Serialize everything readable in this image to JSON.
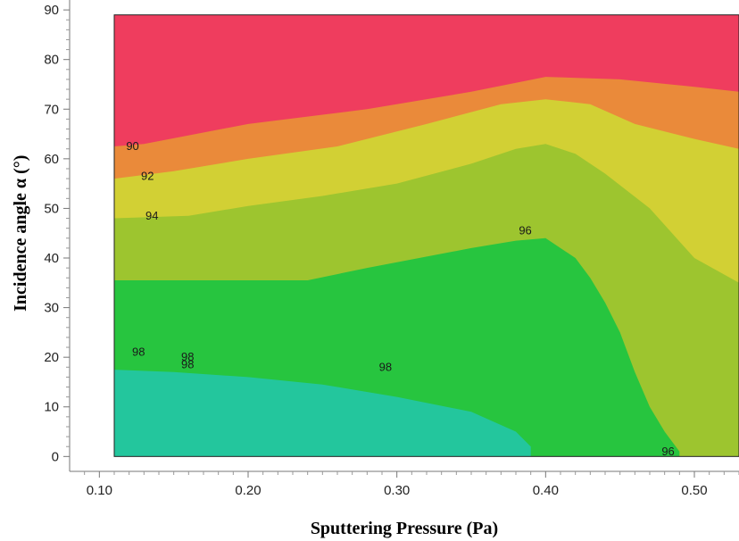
{
  "chart_data": {
    "type": "heatmap",
    "title": "",
    "xlabel": "Sputtering Pressure (Pa)",
    "ylabel": "Incidence angle α (°)",
    "xlim": [
      0.08,
      0.53
    ],
    "ylim": [
      -3,
      92
    ],
    "data_extent": {
      "x": [
        0.11,
        0.53
      ],
      "y": [
        0,
        89
      ]
    },
    "x_ticks": [
      {
        "value": 0.1,
        "label": "0.10"
      },
      {
        "value": 0.2,
        "label": "0.20"
      },
      {
        "value": 0.3,
        "label": "0.30"
      },
      {
        "value": 0.4,
        "label": "0.40"
      },
      {
        "value": 0.5,
        "label": "0.50"
      }
    ],
    "y_ticks": [
      {
        "value": 0,
        "label": "0"
      },
      {
        "value": 10,
        "label": "10"
      },
      {
        "value": 20,
        "label": "20"
      },
      {
        "value": 30,
        "label": "30"
      },
      {
        "value": 40,
        "label": "40"
      },
      {
        "value": 50,
        "label": "50"
      },
      {
        "value": 60,
        "label": "60"
      },
      {
        "value": 70,
        "label": "70"
      },
      {
        "value": 80,
        "label": "80"
      },
      {
        "value": 90,
        "label": "90"
      }
    ],
    "regions": [
      {
        "id": "below-90",
        "color": "#ef3d5e",
        "boundary": [
          [
            0.11,
            89
          ],
          [
            0.53,
            89
          ],
          [
            0.53,
            0
          ],
          [
            0.11,
            0
          ]
        ]
      },
      {
        "id": "90-92",
        "color": "#ea8a3a",
        "boundary": [
          [
            0.11,
            62.5
          ],
          [
            0.13,
            63
          ],
          [
            0.2,
            67
          ],
          [
            0.28,
            70
          ],
          [
            0.35,
            73.5
          ],
          [
            0.4,
            76.5
          ],
          [
            0.45,
            76
          ],
          [
            0.5,
            74.5
          ],
          [
            0.53,
            73.5
          ],
          [
            0.53,
            0
          ],
          [
            0.11,
            0
          ]
        ]
      },
      {
        "id": "92-94",
        "color": "#d2d034",
        "boundary": [
          [
            0.11,
            56
          ],
          [
            0.15,
            57.5
          ],
          [
            0.2,
            60
          ],
          [
            0.26,
            62.5
          ],
          [
            0.32,
            67
          ],
          [
            0.37,
            71
          ],
          [
            0.4,
            72
          ],
          [
            0.43,
            71
          ],
          [
            0.46,
            67
          ],
          [
            0.5,
            64
          ],
          [
            0.53,
            62
          ],
          [
            0.53,
            0
          ],
          [
            0.11,
            0
          ]
        ]
      },
      {
        "id": "94-96",
        "color": "#9dc52f",
        "boundary": [
          [
            0.11,
            48
          ],
          [
            0.16,
            48.5
          ],
          [
            0.2,
            50.5
          ],
          [
            0.25,
            52.5
          ],
          [
            0.3,
            55
          ],
          [
            0.35,
            59
          ],
          [
            0.38,
            62
          ],
          [
            0.4,
            63
          ],
          [
            0.42,
            61
          ],
          [
            0.44,
            57
          ],
          [
            0.47,
            50
          ],
          [
            0.5,
            40
          ],
          [
            0.53,
            35
          ],
          [
            0.53,
            0
          ],
          [
            0.11,
            0
          ]
        ]
      },
      {
        "id": "96-98",
        "color": "#27c53f",
        "boundary": [
          [
            0.11,
            35.5
          ],
          [
            0.24,
            35.5
          ],
          [
            0.28,
            38
          ],
          [
            0.35,
            42
          ],
          [
            0.38,
            43.5
          ],
          [
            0.4,
            44
          ],
          [
            0.42,
            40
          ],
          [
            0.43,
            36
          ],
          [
            0.44,
            31
          ],
          [
            0.45,
            25
          ],
          [
            0.46,
            17
          ],
          [
            0.47,
            10
          ],
          [
            0.48,
            5
          ],
          [
            0.49,
            1
          ],
          [
            0.49,
            0
          ],
          [
            0.11,
            0
          ]
        ]
      },
      {
        "id": "above-98",
        "color": "#23c69d",
        "boundary": [
          [
            0.11,
            17.5
          ],
          [
            0.15,
            17
          ],
          [
            0.2,
            16
          ],
          [
            0.25,
            14.5
          ],
          [
            0.3,
            12
          ],
          [
            0.35,
            9
          ],
          [
            0.38,
            5
          ],
          [
            0.39,
            2
          ],
          [
            0.39,
            0
          ],
          [
            0.11,
            0
          ]
        ]
      }
    ],
    "contour_labels": [
      {
        "text": "90",
        "x": 0.118,
        "y": 62.5
      },
      {
        "text": "92",
        "x": 0.128,
        "y": 56.5
      },
      {
        "text": "94",
        "x": 0.131,
        "y": 48.5
      },
      {
        "text": "96",
        "x": 0.382,
        "y": 45.5
      },
      {
        "text": "98",
        "x": 0.122,
        "y": 21
      },
      {
        "text": "98",
        "x": 0.155,
        "y": 20
      },
      {
        "text": "98",
        "x": 0.155,
        "y": 18.5
      },
      {
        "text": "98",
        "x": 0.288,
        "y": 18
      },
      {
        "text": "96",
        "x": 0.478,
        "y": 1
      }
    ]
  }
}
